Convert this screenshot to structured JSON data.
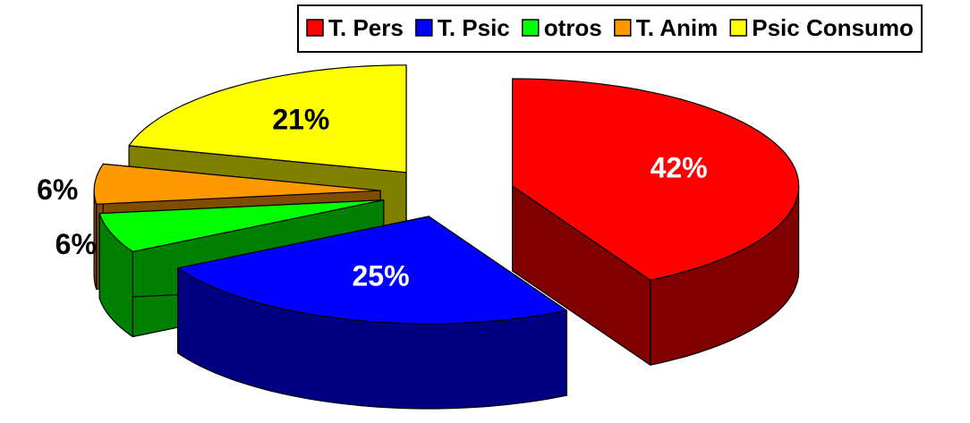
{
  "chart_data": {
    "type": "pie3d",
    "categories": [
      "T. Pers",
      "T. Psic",
      "otros",
      "T. Anim",
      "Psic Consumo"
    ],
    "values": [
      42,
      25,
      6,
      6,
      21
    ],
    "value_labels": [
      "42%",
      "25%",
      "6%",
      "6%",
      "21%"
    ],
    "colors": [
      "#ff0000",
      "#0000ff",
      "#00ff00",
      "#ff9900",
      "#ffff00"
    ],
    "legend": "top"
  }
}
